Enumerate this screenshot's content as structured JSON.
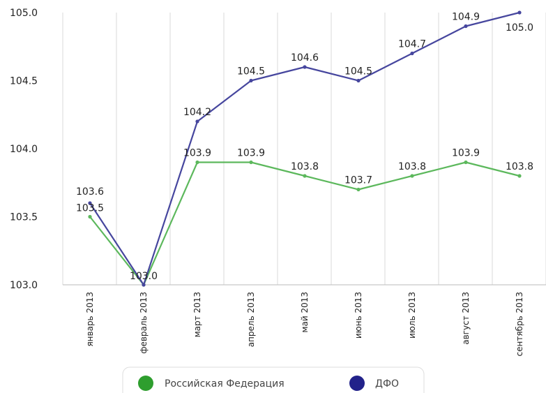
{
  "chart_data": {
    "type": "line",
    "categories": [
      "январь 2013",
      "февраль 2013",
      "март 2013",
      "апрель 2013",
      "май 2013",
      "июнь 2013",
      "июль 2013",
      "август 2013",
      "сентябрь 2013"
    ],
    "series": [
      {
        "name": "Российская Федерация",
        "color": "#5cb85c",
        "values": [
          103.5,
          103.0,
          103.9,
          103.9,
          103.8,
          103.7,
          103.8,
          103.9,
          103.8
        ]
      },
      {
        "name": "ДФО",
        "color": "#3b3b9a",
        "values": [
          103.6,
          103.0,
          104.2,
          104.5,
          104.6,
          104.5,
          104.7,
          104.9,
          105.0
        ]
      }
    ],
    "yticks": [
      "103.0",
      "103.5",
      "104.0",
      "104.5",
      "105.0"
    ],
    "ylim": [
      103.0,
      105.0
    ],
    "grid": "vertical",
    "legend": "bottom-center",
    "legend_colors": [
      "#2e9e2e",
      "#22228a"
    ]
  }
}
